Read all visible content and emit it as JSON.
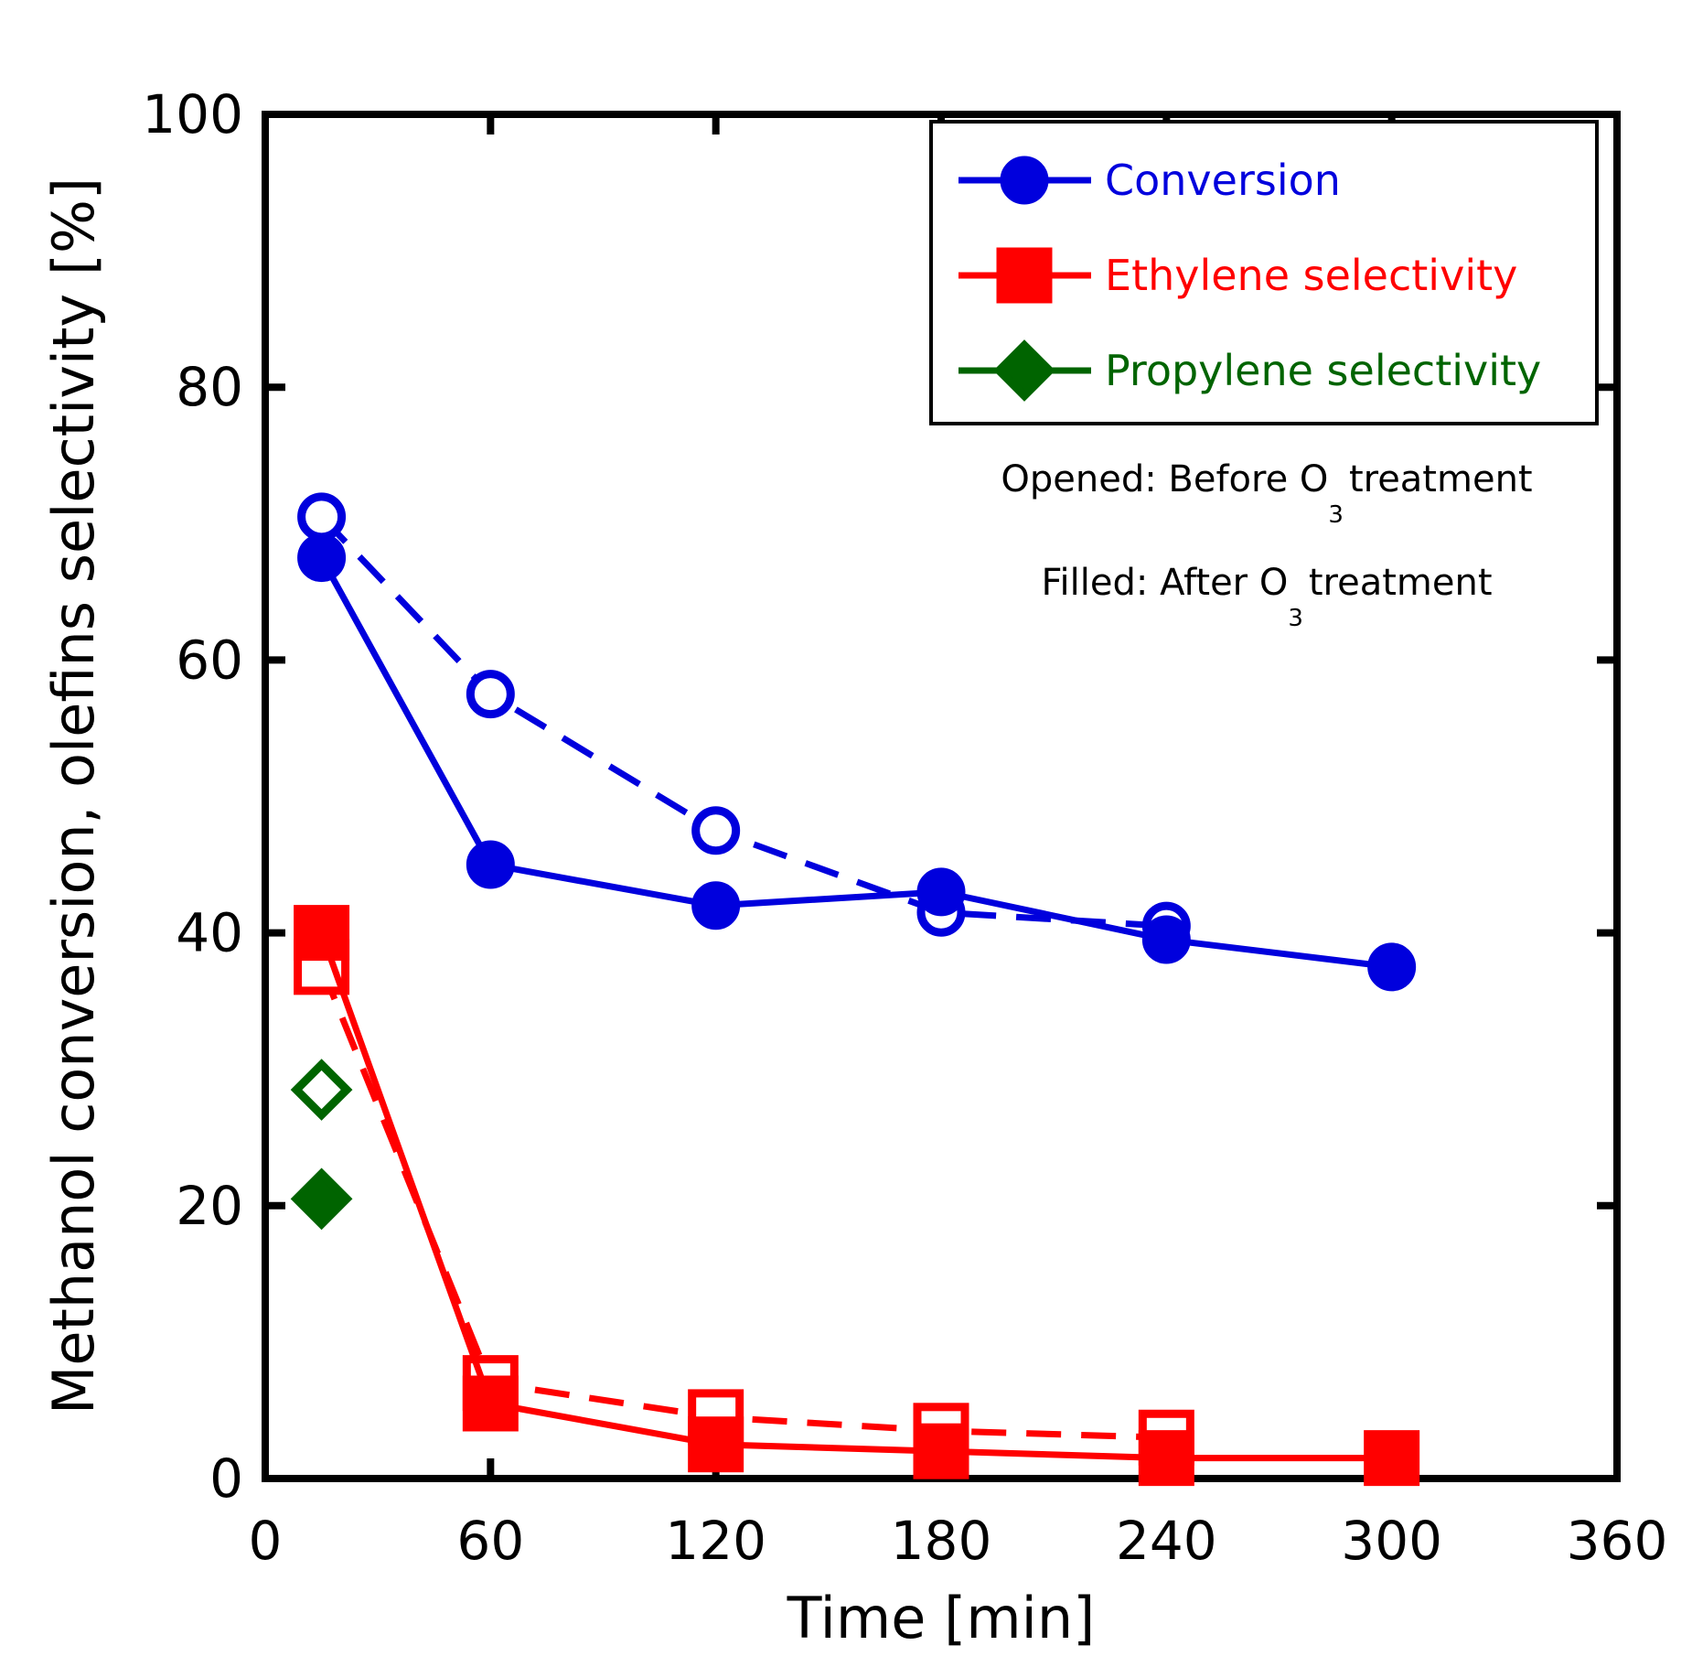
{
  "chart_data": {
    "type": "line",
    "title": "",
    "xlabel": "Time [min]",
    "ylabel": "Methanol conversion, olefins selectivity [%]",
    "xlim": [
      0,
      360
    ],
    "ylim": [
      0,
      100
    ],
    "xticks": [
      0,
      60,
      120,
      180,
      240,
      300,
      360
    ],
    "yticks": [
      0,
      20,
      40,
      60,
      80,
      100
    ],
    "legend": {
      "position": "top-right",
      "entries": [
        {
          "label": "Conversion",
          "color": "#0000dd",
          "marker": "circle"
        },
        {
          "label": "Ethylene selectivity",
          "color": "#ff0000",
          "marker": "square"
        },
        {
          "label": "Propylene selectivity",
          "color": "#006400",
          "marker": "diamond"
        }
      ]
    },
    "annotations": {
      "opened": {
        "prefix": "Opened: Before O",
        "sub": "3",
        "suffix": "treatment"
      },
      "filled": {
        "prefix": "Filled: After O",
        "sub": "3",
        "suffix": "treatment"
      }
    },
    "series": [
      {
        "name": "Conversion (before O3 treatment)",
        "color": "#0000dd",
        "marker": "circle",
        "filled": false,
        "dashed": true,
        "x": [
          15,
          60,
          120,
          180,
          240
        ],
        "y": [
          70.5,
          57.5,
          47.5,
          41.5,
          40.5
        ]
      },
      {
        "name": "Conversion (after O3 treatment)",
        "color": "#0000dd",
        "marker": "circle",
        "filled": true,
        "dashed": false,
        "x": [
          15,
          60,
          120,
          180,
          240,
          300
        ],
        "y": [
          67.5,
          45,
          42,
          43,
          39.5,
          37.5
        ]
      },
      {
        "name": "Ethylene selectivity (before O3 treatment)",
        "color": "#ff0000",
        "marker": "square",
        "filled": false,
        "dashed": true,
        "x": [
          15,
          60,
          120,
          180,
          240
        ],
        "y": [
          37.5,
          7,
          4.5,
          3.5,
          3
        ]
      },
      {
        "name": "Ethylene selectivity (after O3 treatment)",
        "color": "#ff0000",
        "marker": "square",
        "filled": true,
        "dashed": false,
        "x": [
          15,
          60,
          120,
          180,
          240,
          300
        ],
        "y": [
          40,
          5.5,
          2.5,
          2,
          1.5,
          1.5
        ]
      },
      {
        "name": "Propylene selectivity (before O3 treatment)",
        "color": "#006400",
        "marker": "diamond",
        "filled": false,
        "dashed": true,
        "x": [
          15
        ],
        "y": [
          28.5
        ]
      },
      {
        "name": "Propylene selectivity (after O3 treatment)",
        "color": "#006400",
        "marker": "diamond",
        "filled": true,
        "dashed": false,
        "x": [
          15
        ],
        "y": [
          20.5
        ]
      }
    ]
  }
}
